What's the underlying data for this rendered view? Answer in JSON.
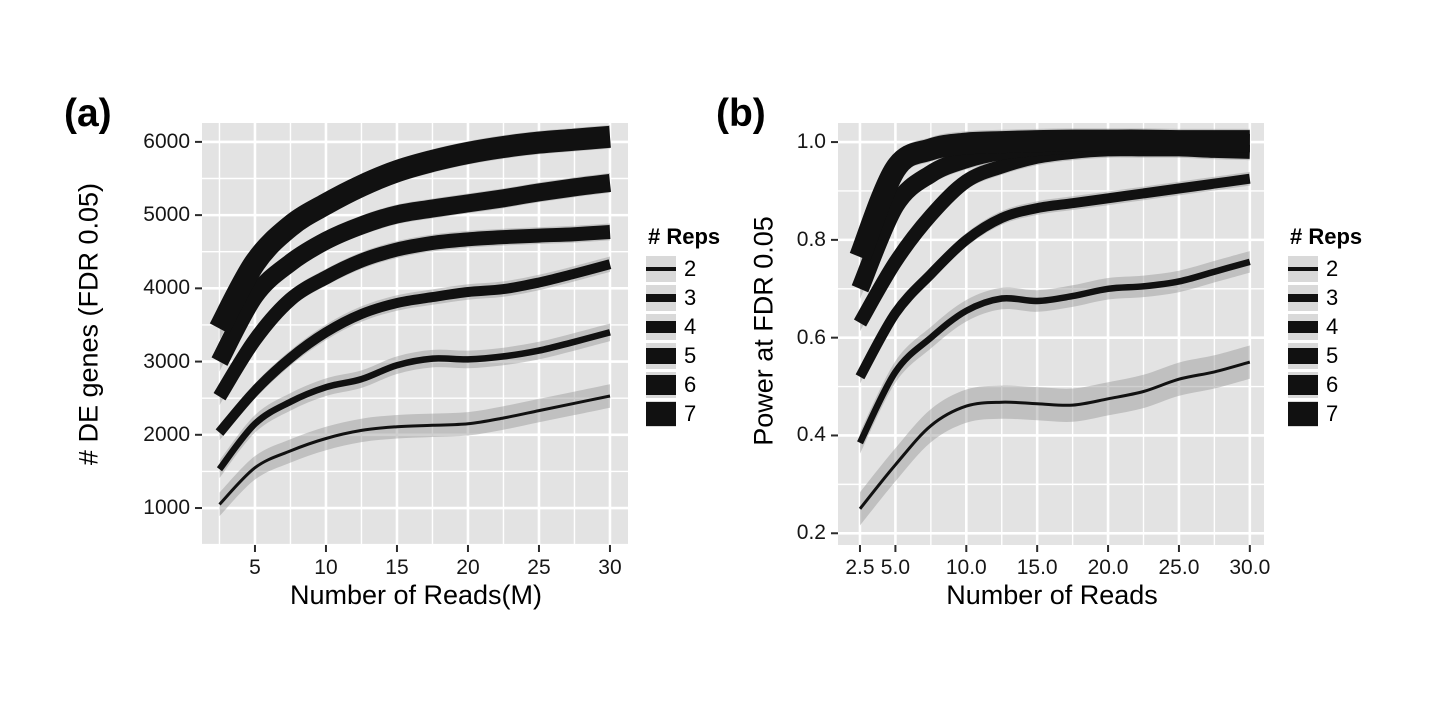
{
  "figure": {
    "colors": {
      "background": "#ffffff",
      "panel_bg": "#e3e3e3",
      "grid": "#ffffff",
      "line": "#111111",
      "ribbon": "#8f8f8f",
      "legend_key_bg": "#d9d9d9",
      "tick": "#2b2b2b",
      "text": "#000000"
    }
  },
  "chart_data": [
    {
      "type": "line",
      "panel_label": "(a)",
      "title": "",
      "xlabel": "Number of Reads(M)",
      "ylabel": "# DE genes (FDR 0.05)",
      "x": [
        2.5,
        5,
        7.5,
        10,
        12.5,
        15,
        17.5,
        20,
        22.5,
        25,
        27.5,
        30
      ],
      "x_tick_values": [
        5,
        10,
        15,
        20,
        25,
        30
      ],
      "x_tick_labels": [
        "5",
        "10",
        "15",
        "20",
        "25",
        "30"
      ],
      "y_tick_values": [
        6000,
        5000,
        4000,
        3000,
        2000,
        1000
      ],
      "y_tick_labels": [
        "6000",
        "5000",
        "4000",
        "3000",
        "2000",
        "1000"
      ],
      "xlim": [
        1.27,
        31.27
      ],
      "ylim": [
        495,
        6258
      ],
      "grid": {
        "x_from": 2.5,
        "x_to": 30,
        "x_step": 2.5,
        "y_from": 500,
        "y_to": 6000,
        "y_step": 500
      },
      "legend": {
        "title": "# Reps",
        "position": "right"
      },
      "series": [
        {
          "name": "2",
          "line_width": 3,
          "ribbon": 160,
          "values": [
            1050,
            1550,
            1780,
            1950,
            2060,
            2110,
            2130,
            2150,
            2230,
            2330,
            2430,
            2530
          ]
        },
        {
          "name": "3",
          "line_width": 6.5,
          "ribbon": 120,
          "values": [
            1530,
            2150,
            2450,
            2650,
            2760,
            2950,
            3040,
            3030,
            3070,
            3150,
            3270,
            3400
          ]
        },
        {
          "name": "4",
          "line_width": 10,
          "ribbon": 105,
          "values": [
            2030,
            2600,
            3050,
            3400,
            3650,
            3800,
            3880,
            3950,
            3990,
            4080,
            4200,
            4330
          ]
        },
        {
          "name": "5",
          "line_width": 14,
          "ribbon": 115,
          "values": [
            2520,
            3300,
            3850,
            4150,
            4380,
            4530,
            4620,
            4670,
            4700,
            4720,
            4740,
            4770
          ]
        },
        {
          "name": "6",
          "line_width": 18,
          "ribbon": 135,
          "values": [
            3000,
            3900,
            4350,
            4650,
            4860,
            5010,
            5090,
            5160,
            5230,
            5310,
            5380,
            5440
          ]
        },
        {
          "name": "7",
          "line_width": 22,
          "ribbon": 160,
          "values": [
            3450,
            4350,
            4850,
            5150,
            5400,
            5600,
            5740,
            5850,
            5930,
            5990,
            6030,
            6070
          ]
        }
      ]
    },
    {
      "type": "line",
      "panel_label": "(b)",
      "title": "",
      "xlabel": "Number of Reads",
      "ylabel": "Power at FDR 0.05",
      "x": [
        2.5,
        5,
        7.5,
        10,
        12.5,
        15,
        17.5,
        20,
        22.5,
        25,
        27.5,
        30
      ],
      "x_tick_values": [
        2.5,
        5,
        10,
        15,
        20,
        25,
        30
      ],
      "x_tick_labels": [
        "2.5",
        "5.0",
        "10.0",
        "15.0",
        "20.0",
        "25.0",
        "30.0"
      ],
      "y_tick_values": [
        1.0,
        0.8,
        0.6,
        0.4,
        0.2
      ],
      "y_tick_labels": [
        "1.0",
        "0.8",
        "0.6",
        "0.4",
        "0.2"
      ],
      "xlim": [
        0.95,
        31.0
      ],
      "ylim": [
        0.176,
        1.039
      ],
      "grid": {
        "x_from": 2.5,
        "x_to": 30,
        "x_step": 2.5,
        "y_from": 0.2,
        "y_to": 1.0,
        "y_step": 0.1
      },
      "legend": {
        "title": "# Reps",
        "position": "right"
      },
      "series": [
        {
          "name": "2",
          "line_width": 3,
          "ribbon": 0.034,
          "values": [
            0.25,
            0.34,
            0.42,
            0.46,
            0.468,
            0.465,
            0.462,
            0.475,
            0.49,
            0.515,
            0.53,
            0.55
          ]
        },
        {
          "name": "3",
          "line_width": 6.5,
          "ribbon": 0.022,
          "values": [
            0.385,
            0.53,
            0.6,
            0.655,
            0.68,
            0.675,
            0.685,
            0.7,
            0.705,
            0.715,
            0.735,
            0.755
          ]
        },
        {
          "name": "4",
          "line_width": 10,
          "ribbon": 0.014,
          "values": [
            0.52,
            0.65,
            0.73,
            0.8,
            0.845,
            0.865,
            0.875,
            0.885,
            0.895,
            0.905,
            0.915,
            0.925
          ]
        },
        {
          "name": "5",
          "line_width": 14,
          "ribbon": 0.017,
          "values": [
            0.63,
            0.755,
            0.85,
            0.92,
            0.95,
            0.97,
            0.98,
            0.985,
            0.985,
            0.985,
            0.982,
            0.98
          ]
        },
        {
          "name": "6",
          "line_width": 18,
          "ribbon": 0.021,
          "values": [
            0.7,
            0.87,
            0.935,
            0.965,
            0.982,
            0.99,
            0.995,
            0.998,
            1.0,
            1.0,
            1.0,
            0.998
          ]
        },
        {
          "name": "7",
          "line_width": 22,
          "ribbon": 0.025,
          "values": [
            0.765,
            0.945,
            0.985,
            0.997,
            1.0,
            1.002,
            1.003,
            1.003,
            1.003,
            1.002,
            1.002,
            1.002
          ]
        }
      ]
    }
  ]
}
